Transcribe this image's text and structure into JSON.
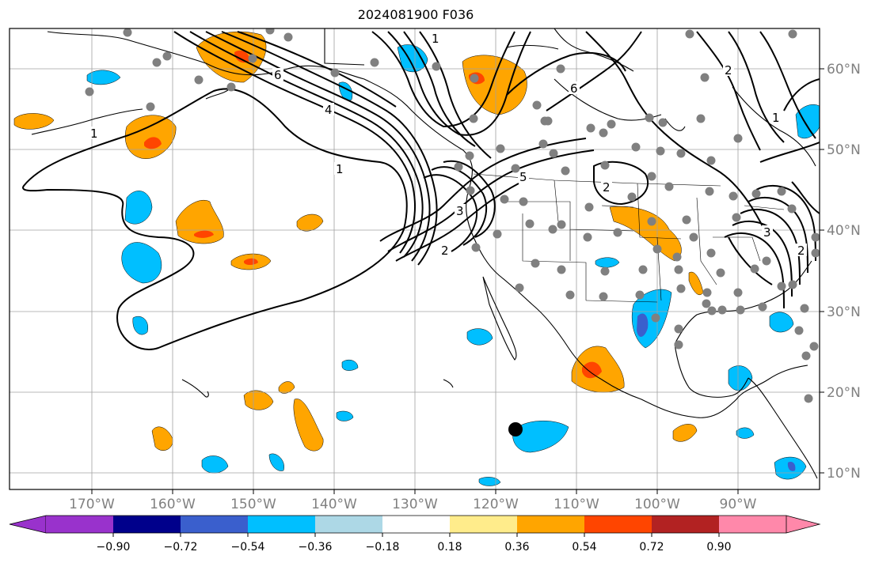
{
  "title": "2024081900 F036",
  "map": {
    "longitude_labels": [
      "170°W",
      "160°W",
      "150°W",
      "140°W",
      "130°W",
      "120°W",
      "110°W",
      "100°W",
      "90°W"
    ],
    "latitude_labels": [
      "60°N",
      "50°N",
      "40°N",
      "30°N",
      "20°N",
      "10°N"
    ],
    "contour_labels": [
      "1",
      "1",
      "1",
      "6",
      "4",
      "5",
      "3",
      "2",
      "2",
      "6",
      "1",
      "2",
      "3",
      "2"
    ],
    "colors": {
      "grid": "#a0a0a0",
      "contour": "#000000",
      "marker": "#808080",
      "center_marker": "#000000"
    }
  },
  "colorbar": {
    "tick_labels": [
      "−0.90",
      "−0.72",
      "−0.54",
      "−0.36",
      "−0.18",
      "0.18",
      "0.36",
      "0.54",
      "0.72",
      "0.90"
    ],
    "colors": [
      "#9932cc",
      "#00008b",
      "#3a5fcd",
      "#00bfff",
      "#add8e6",
      "#ffffff",
      "#ffec8b",
      "#ffa500",
      "#ff4500",
      "#b22222",
      "#ff88aa"
    ]
  }
}
